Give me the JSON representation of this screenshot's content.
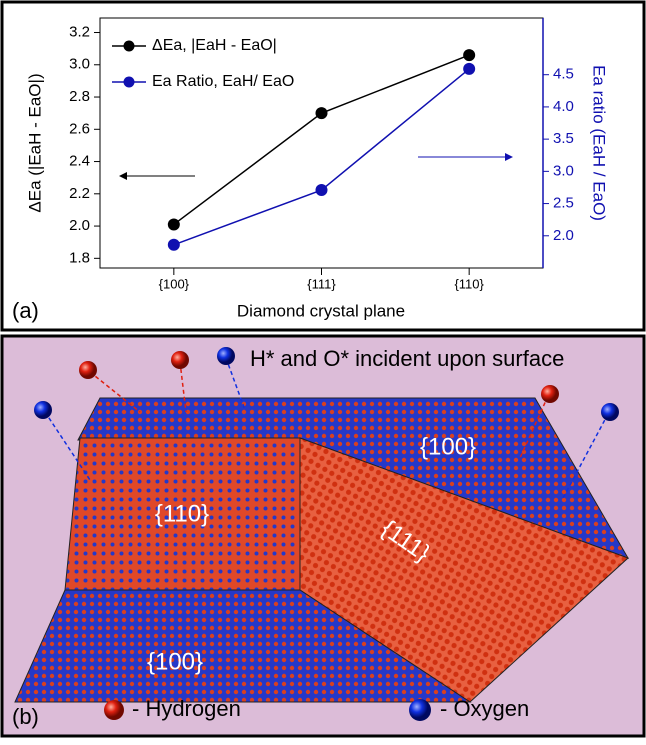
{
  "chart_data": {
    "type": "line",
    "panel_label": "(a)",
    "categories": [
      "{100}",
      "{111}",
      "{110}"
    ],
    "x_label": "Diamond crystal plane",
    "y_label": "ΔEa (|EaH - EaO|)",
    "y2_label": "Ea ratio (EaH / EaO)",
    "ylim": [
      1.74,
      3.29
    ],
    "yticks": [
      1.8,
      {
        "value": 2,
        "label": "2.0"
      },
      2.2,
      2.4,
      2.6,
      2.8,
      {
        "value": 3,
        "label": "3.0"
      },
      3.2
    ],
    "y2lim": [
      1.5,
      5.38
    ],
    "y2ticks": [
      {
        "value": 2,
        "label": "2.0"
      },
      2.5,
      {
        "value": 3,
        "label": "3.0"
      },
      3.5,
      {
        "value": 4,
        "label": "4.0"
      },
      4.5
    ],
    "series": [
      {
        "name": "ΔEa, |EaH - EaO|",
        "color": "#000000",
        "values": [
          2.01,
          2.7,
          3.06
        ]
      },
      {
        "name": "Ea Ratio, EaH/ EaO",
        "color": "#1010b0",
        "axis": "y2",
        "values": [
          1.86,
          2.71,
          4.59
        ]
      }
    ]
  },
  "panel_b": {
    "label": "(b)",
    "caption": "H* and O* incident upon surface",
    "facets": [
      "{100}",
      "{110}",
      "{111}",
      "{100}"
    ],
    "legend": [
      "- Hydrogen",
      "- Oxygen"
    ]
  }
}
